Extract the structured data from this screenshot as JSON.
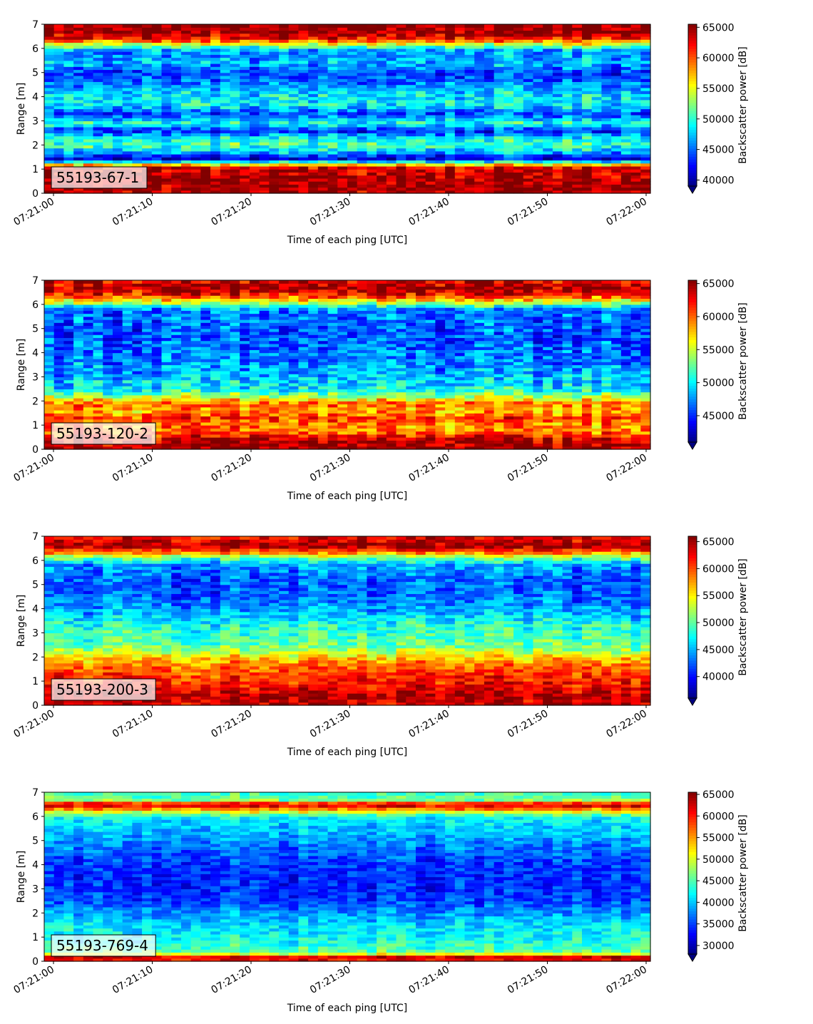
{
  "chart_data": [
    {
      "type": "heatmap",
      "label": "55193-67-1",
      "xlabel": "Time of each ping [UTC]",
      "ylabel": "Range [m]",
      "ylim": [
        0,
        7
      ],
      "yticks": [
        "0",
        "1",
        "2",
        "3",
        "4",
        "5",
        "6",
        "7"
      ],
      "xticks": [
        "07:21:00",
        "07:21:10",
        "07:21:20",
        "07:21:30",
        "07:21:40",
        "07:21:50",
        "07:22:00"
      ],
      "colorbar": {
        "label": "Backscatter power [dB]",
        "min": 39000,
        "max": 65500,
        "ticks": [
          40000,
          45000,
          50000,
          55000,
          60000,
          65000
        ],
        "colormap": "jet",
        "extend": "min"
      },
      "range_profile": [
        [
          0.0,
          64000
        ],
        [
          0.3,
          65000
        ],
        [
          0.6,
          64500
        ],
        [
          1.1,
          63000
        ],
        [
          1.25,
          52000
        ],
        [
          1.45,
          41000
        ],
        [
          1.65,
          46000
        ],
        [
          2.0,
          51000
        ],
        [
          2.3,
          49000
        ],
        [
          2.6,
          43000
        ],
        [
          2.9,
          50000
        ],
        [
          3.3,
          44000
        ],
        [
          3.7,
          49000
        ],
        [
          4.1,
          48500
        ],
        [
          4.6,
          45000
        ],
        [
          5.0,
          44000
        ],
        [
          5.4,
          47000
        ],
        [
          5.9,
          46000
        ],
        [
          6.2,
          55000
        ],
        [
          6.4,
          62000
        ],
        [
          6.7,
          65000
        ],
        [
          7.0,
          65000
        ]
      ]
    },
    {
      "type": "heatmap",
      "label": "55193-120-2",
      "xlabel": "Time of each ping [UTC]",
      "ylabel": "Range [m]",
      "ylim": [
        0,
        7
      ],
      "yticks": [
        "0",
        "1",
        "2",
        "3",
        "4",
        "5",
        "6",
        "7"
      ],
      "xticks": [
        "07:21:00",
        "07:21:10",
        "07:21:20",
        "07:21:30",
        "07:21:40",
        "07:21:50",
        "07:22:00"
      ],
      "colorbar": {
        "label": "Backscatter power [dB]",
        "min": 41000,
        "max": 65500,
        "ticks": [
          45000,
          50000,
          55000,
          60000,
          65000
        ],
        "colormap": "jet",
        "extend": "min"
      },
      "range_profile": [
        [
          0.0,
          65000
        ],
        [
          0.4,
          64000
        ],
        [
          0.7,
          60000
        ],
        [
          1.0,
          59000
        ],
        [
          1.3,
          61000
        ],
        [
          1.6,
          58000
        ],
        [
          1.9,
          60000
        ],
        [
          2.2,
          54000
        ],
        [
          2.5,
          50000
        ],
        [
          2.8,
          49000
        ],
        [
          3.2,
          48000
        ],
        [
          3.7,
          47000
        ],
        [
          4.2,
          46500
        ],
        [
          4.8,
          46000
        ],
        [
          5.3,
          46500
        ],
        [
          5.8,
          47000
        ],
        [
          6.1,
          55000
        ],
        [
          6.4,
          62000
        ],
        [
          6.7,
          64500
        ],
        [
          7.0,
          63000
        ]
      ]
    },
    {
      "type": "heatmap",
      "label": "55193-200-3",
      "xlabel": "Time of each ping [UTC]",
      "ylabel": "Range [m]",
      "ylim": [
        0,
        7
      ],
      "yticks": [
        "0",
        "1",
        "2",
        "3",
        "4",
        "5",
        "6",
        "7"
      ],
      "xticks": [
        "07:21:00",
        "07:21:10",
        "07:21:20",
        "07:21:30",
        "07:21:40",
        "07:21:50",
        "07:22:00"
      ],
      "colorbar": {
        "label": "Backscatter power [dB]",
        "min": 36000,
        "max": 66000,
        "ticks": [
          40000,
          45000,
          50000,
          55000,
          60000,
          65000
        ],
        "colormap": "jet",
        "extend": "min"
      },
      "range_profile": [
        [
          0.0,
          63000
        ],
        [
          0.4,
          64500
        ],
        [
          0.8,
          62000
        ],
        [
          1.2,
          61000
        ],
        [
          1.6,
          59000
        ],
        [
          1.9,
          57000
        ],
        [
          2.2,
          53000
        ],
        [
          2.5,
          50000
        ],
        [
          2.9,
          49000
        ],
        [
          3.3,
          48000
        ],
        [
          3.8,
          45000
        ],
        [
          4.3,
          43000
        ],
        [
          4.8,
          42000
        ],
        [
          5.3,
          42500
        ],
        [
          5.8,
          44000
        ],
        [
          6.1,
          50000
        ],
        [
          6.4,
          60000
        ],
        [
          6.6,
          65000
        ],
        [
          7.0,
          62000
        ]
      ]
    },
    {
      "type": "heatmap",
      "label": "55193-769-4",
      "xlabel": "Time of each ping [UTC]",
      "ylabel": "Range [m]",
      "ylim": [
        0,
        7
      ],
      "yticks": [
        "0",
        "1",
        "2",
        "3",
        "4",
        "5",
        "6",
        "7"
      ],
      "xticks": [
        "07:21:00",
        "07:21:10",
        "07:21:20",
        "07:21:30",
        "07:21:40",
        "07:21:50",
        "07:22:00"
      ],
      "colorbar": {
        "label": "Backscatter power [dB]",
        "min": 28000,
        "max": 65500,
        "ticks": [
          30000,
          35000,
          40000,
          45000,
          50000,
          55000,
          60000,
          65000
        ],
        "colormap": "jet",
        "extend": "min"
      },
      "range_profile": [
        [
          0.0,
          60000
        ],
        [
          0.2,
          62000
        ],
        [
          0.35,
          46000
        ],
        [
          0.6,
          44000
        ],
        [
          1.0,
          42000
        ],
        [
          1.5,
          41000
        ],
        [
          2.0,
          38000
        ],
        [
          2.5,
          35000
        ],
        [
          3.0,
          34000
        ],
        [
          3.5,
          34000
        ],
        [
          4.0,
          34500
        ],
        [
          4.5,
          36000
        ],
        [
          5.0,
          38000
        ],
        [
          5.5,
          40000
        ],
        [
          6.0,
          42000
        ],
        [
          6.3,
          55000
        ],
        [
          6.5,
          64000
        ],
        [
          6.7,
          46000
        ],
        [
          7.0,
          44000
        ]
      ]
    }
  ]
}
